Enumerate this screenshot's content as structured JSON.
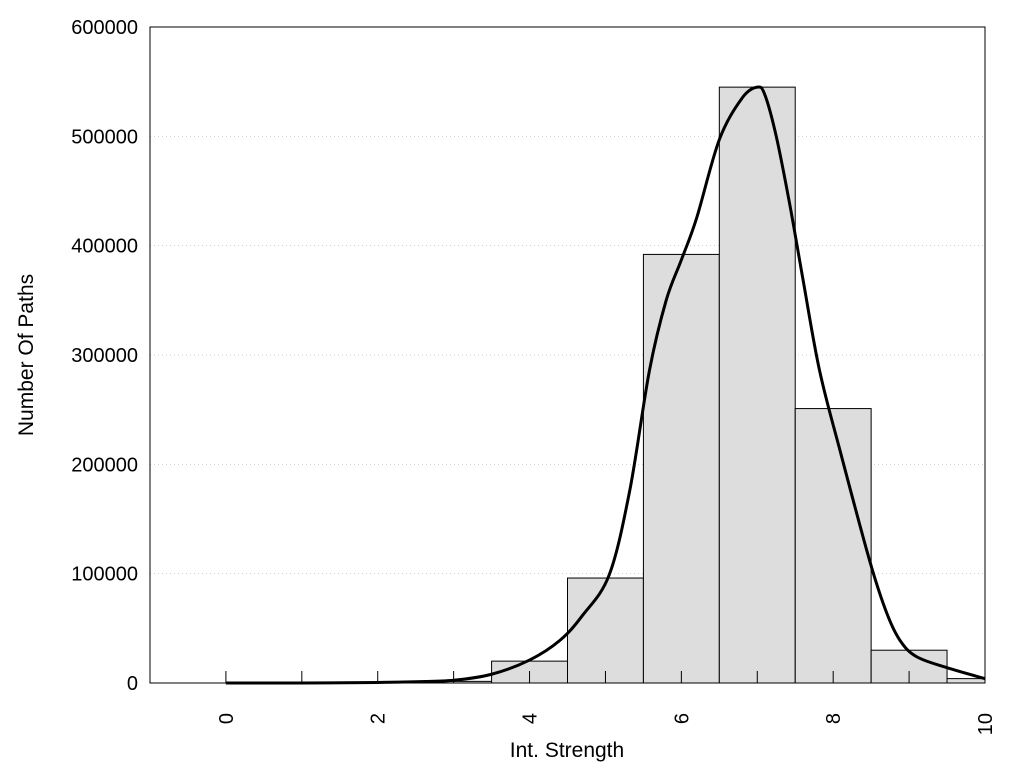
{
  "chart_data": {
    "type": "bar",
    "title": "",
    "xlabel": "Int. Strength",
    "ylabel": "Number Of Paths",
    "xlim": [
      -1,
      10
    ],
    "ylim": [
      0,
      600000
    ],
    "grid": "horizontal dotted",
    "x_ticks": [
      0,
      2,
      4,
      6,
      8,
      10
    ],
    "y_ticks": [
      0,
      100000,
      200000,
      300000,
      400000,
      500000,
      600000
    ],
    "bar_color": "#dddddd",
    "bars": [
      {
        "x": 0,
        "value": 0
      },
      {
        "x": 1,
        "value": 0
      },
      {
        "x": 2,
        "value": 300
      },
      {
        "x": 3,
        "value": 1500
      },
      {
        "x": 4,
        "value": 20000
      },
      {
        "x": 5,
        "value": 96000
      },
      {
        "x": 6,
        "value": 392000
      },
      {
        "x": 7,
        "value": 545000
      },
      {
        "x": 8,
        "value": 251000
      },
      {
        "x": 9,
        "value": 30000
      },
      {
        "x": 10,
        "value": 4000
      }
    ],
    "density_curve": {
      "x": [
        0,
        1,
        2,
        2.5,
        3,
        3.5,
        4,
        4.4,
        4.7,
        5.05,
        5.32,
        5.58,
        5.8,
        6,
        6.2,
        6.5,
        6.8,
        7,
        7.1,
        7.25,
        7.43,
        7.6,
        7.82,
        8.1,
        8.48,
        8.7,
        8.88,
        9.1,
        9.5,
        10
      ],
      "y": [
        0,
        0,
        500,
        1200,
        2500,
        8000,
        21000,
        39000,
        62000,
        99000,
        176000,
        286000,
        350000,
        387000,
        425000,
        497000,
        535000,
        545000,
        538000,
        500000,
        437000,
        370000,
        286000,
        210000,
        112000,
        65000,
        39000,
        24000,
        14000,
        4000
      ]
    }
  }
}
